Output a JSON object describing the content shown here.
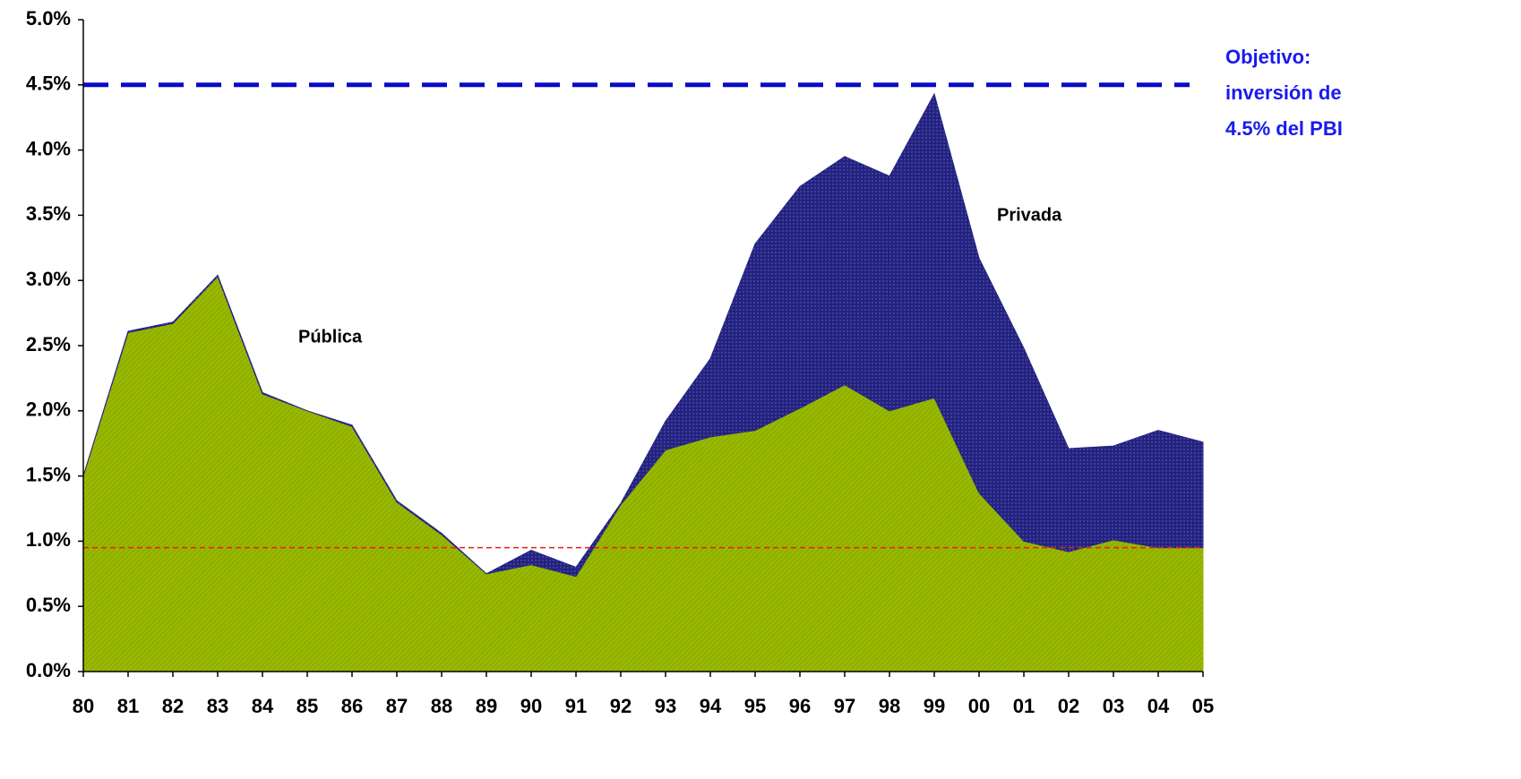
{
  "chart_data": {
    "type": "stacked_area",
    "categories": [
      "80",
      "81",
      "82",
      "83",
      "84",
      "85",
      "86",
      "87",
      "88",
      "89",
      "90",
      "91",
      "92",
      "93",
      "94",
      "95",
      "96",
      "97",
      "98",
      "99",
      "00",
      "01",
      "02",
      "03",
      "04",
      "05"
    ],
    "series": [
      {
        "name": "Pública",
        "color": "#99b800",
        "values": [
          1.5,
          2.6,
          2.67,
          3.03,
          2.13,
          2.0,
          1.88,
          1.3,
          1.05,
          0.75,
          0.82,
          0.73,
          1.28,
          1.7,
          1.8,
          1.85,
          2.02,
          2.2,
          2.0,
          2.1,
          1.37,
          1.0,
          0.92,
          1.01,
          0.95,
          0.95
        ]
      },
      {
        "name": "Privada",
        "color": "#23237f",
        "values": [
          0,
          0.01,
          0.01,
          0.01,
          0.01,
          0,
          0.01,
          0.01,
          0.01,
          0,
          0.11,
          0.07,
          0.01,
          0.22,
          0.6,
          1.43,
          1.7,
          1.75,
          1.8,
          2.33,
          1.8,
          1.48,
          0.79,
          0.72,
          0.9,
          0.81
        ]
      }
    ],
    "ylim": [
      0,
      5
    ],
    "yticks": [
      {
        "value": 0,
        "label": "0.0%"
      },
      {
        "value": 0.5,
        "label": "0.5%"
      },
      {
        "value": 1,
        "label": "1.0%"
      },
      {
        "value": 1.5,
        "label": "1.5%"
      },
      {
        "value": 2,
        "label": "2.0%"
      },
      {
        "value": 2.5,
        "label": "2.5%"
      },
      {
        "value": 3,
        "label": "3.0%"
      },
      {
        "value": 3.5,
        "label": "3.5%"
      },
      {
        "value": 4,
        "label": "4.0%"
      },
      {
        "value": 4.5,
        "label": "4.5%"
      },
      {
        "value": 5,
        "label": "5.0%"
      }
    ],
    "grid": false,
    "reference_lines": [
      {
        "value": 4.5,
        "color": "#0a0ac8",
        "style": "dashed"
      },
      {
        "value": 0.95,
        "color": "#e0201c",
        "style": "dotted"
      }
    ],
    "annotations": {
      "goal": [
        "Objetivo:",
        "inversión de",
        "4.5% del PBI"
      ],
      "goal_color": "#1a1aee"
    }
  }
}
